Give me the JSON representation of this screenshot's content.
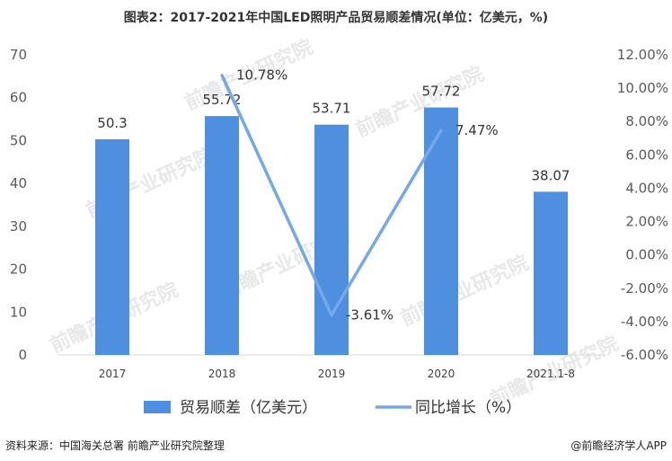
{
  "title": "图表2：2017-2021年中国LED照明产品贸易顺差情况(单位：亿美元，%)",
  "chart_data": {
    "type": "bar",
    "categories": [
      "2017",
      "2018",
      "2019",
      "2020",
      "2021.1-8"
    ],
    "series": [
      {
        "name": "贸易顺差（亿美元）",
        "type": "bar",
        "axis": "left",
        "values": [
          50.3,
          55.72,
          53.71,
          57.72,
          38.07
        ],
        "labels": [
          "50.3",
          "55.72",
          "53.71",
          "57.72",
          "38.07"
        ],
        "color": "#4f8fe0"
      },
      {
        "name": "同比增长（%）",
        "type": "line",
        "axis": "right",
        "values": [
          null,
          10.78,
          -3.61,
          7.47,
          null
        ],
        "labels": [
          "",
          "10.78%",
          "-3.61%",
          "7.47%",
          ""
        ],
        "color": "#74a8e8"
      }
    ],
    "y_left": {
      "min": 0,
      "max": 70,
      "ticks": [
        "0",
        "10",
        "20",
        "30",
        "40",
        "50",
        "60",
        "70"
      ]
    },
    "y_right": {
      "min": -6,
      "max": 12,
      "ticks": [
        "-6.00%",
        "-4.00%",
        "-2.00%",
        "0.00%",
        "2.00%",
        "4.00%",
        "6.00%",
        "8.00%",
        "10.00%",
        "12.00%"
      ]
    },
    "legend_position": "bottom",
    "grid": false
  },
  "footer": {
    "source": "资料来源：中国海关总署 前瞻产业研究院整理",
    "credit": "@前瞻经济学人APP"
  },
  "watermark": "前瞻产业研究院"
}
